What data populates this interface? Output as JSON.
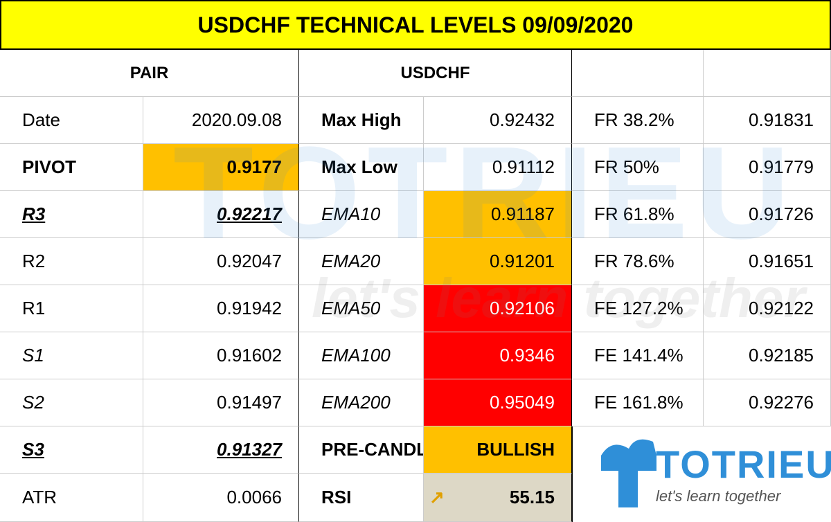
{
  "title": "USDCHF TECHNICAL LEVELS 09/09/2020",
  "header": [
    "PAIR",
    "USDCHF"
  ],
  "rows": [
    [
      "Date",
      "2020.09.08",
      "Max High",
      "0.92432",
      "FR 38.2%",
      "0.91831"
    ],
    [
      "PIVOT",
      "0.9177",
      "Max Low",
      "0.91112",
      "FR 50%",
      "0.91779"
    ],
    [
      "R3",
      "0.92217",
      "EMA10",
      "0.91187",
      "FR 61.8%",
      "0.91726"
    ],
    [
      "R2",
      "0.92047",
      "EMA20",
      "0.91201",
      "FR 78.6%",
      "0.91651"
    ],
    [
      "R1",
      "0.91942",
      "EMA50",
      "0.92106",
      "FE 127.2%",
      "0.92122"
    ],
    [
      "S1",
      "0.91602",
      "EMA100",
      "0.9346",
      "FE 141.4%",
      "0.92185"
    ],
    [
      "S2",
      "0.91497",
      "EMA200",
      "0.95049",
      "FE 161.8%",
      "0.92276"
    ],
    [
      "S3",
      "0.91327",
      "PRE-CANDLE",
      "BULLISH"
    ],
    [
      "ATR",
      "0.0066",
      "RSI",
      "55.15"
    ]
  ],
  "logo": {
    "name": "TOTRIEU",
    "tagline": "let's learn together"
  }
}
